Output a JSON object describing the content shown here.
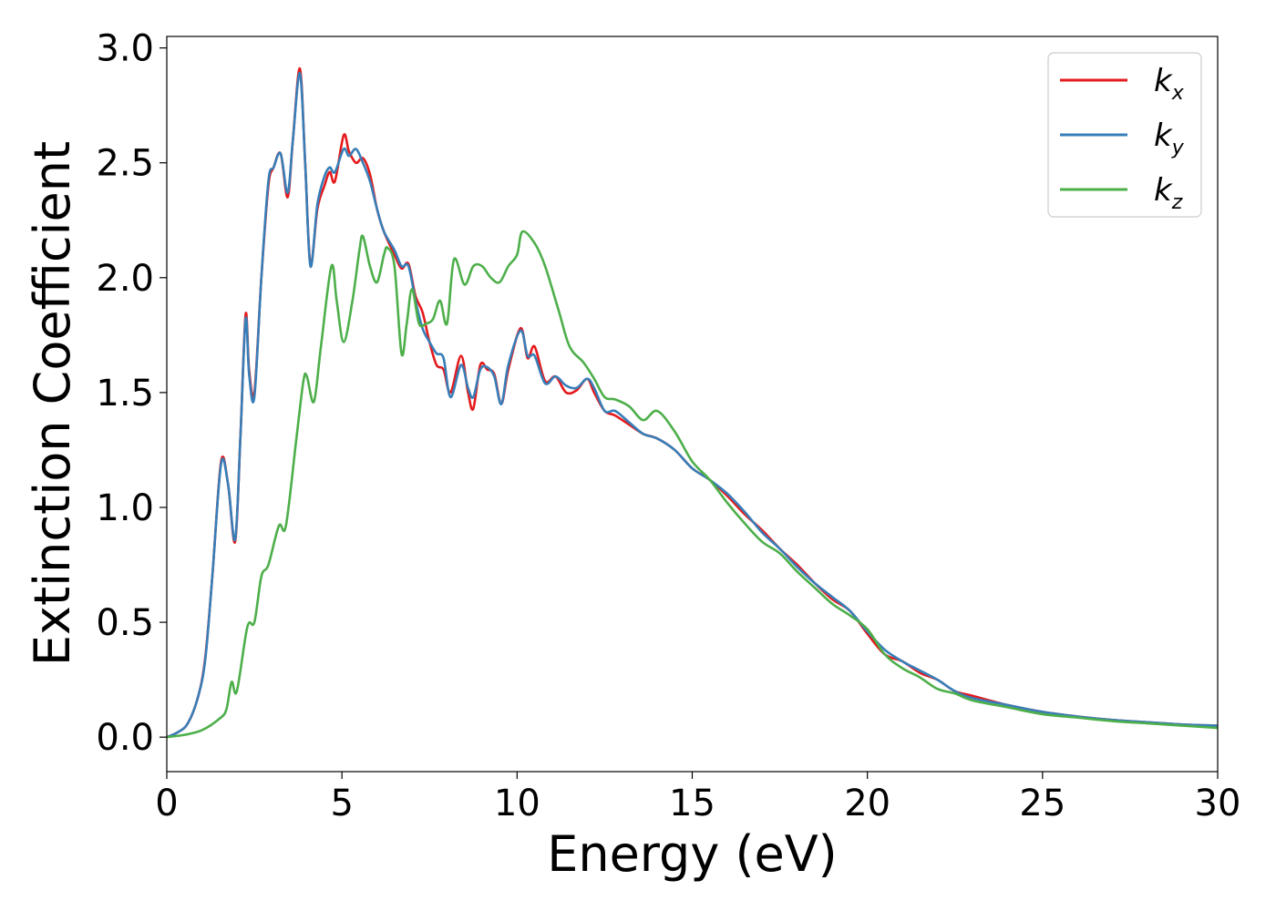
{
  "chart_data": {
    "type": "line",
    "xlabel": "Energy (eV)",
    "ylabel": "Extinction Coefficient",
    "xlim": [
      0,
      30
    ],
    "ylim": [
      -0.15,
      3.05
    ],
    "x_ticks": [
      "0",
      "5",
      "10",
      "15",
      "20",
      "25",
      "30"
    ],
    "y_ticks": [
      "0.0",
      "0.5",
      "1.0",
      "1.5",
      "2.0",
      "2.5",
      "3.0"
    ],
    "grid": false,
    "legend_position": "top-right",
    "series": [
      {
        "name": "k",
        "subscript": "x",
        "color": "#e41a1c",
        "points": [
          [
            0,
            0
          ],
          [
            0.3,
            0.02
          ],
          [
            0.6,
            0.06
          ],
          [
            0.9,
            0.18
          ],
          [
            1.1,
            0.35
          ],
          [
            1.3,
            0.7
          ],
          [
            1.55,
            1.2
          ],
          [
            1.75,
            1.1
          ],
          [
            1.95,
            0.85
          ],
          [
            2.1,
            1.3
          ],
          [
            2.25,
            1.84
          ],
          [
            2.35,
            1.6
          ],
          [
            2.5,
            1.5
          ],
          [
            2.7,
            2.0
          ],
          [
            2.9,
            2.4
          ],
          [
            3.05,
            2.48
          ],
          [
            3.25,
            2.54
          ],
          [
            3.45,
            2.35
          ],
          [
            3.6,
            2.6
          ],
          [
            3.8,
            2.91
          ],
          [
            3.95,
            2.5
          ],
          [
            4.1,
            2.06
          ],
          [
            4.3,
            2.3
          ],
          [
            4.5,
            2.4
          ],
          [
            4.65,
            2.46
          ],
          [
            4.8,
            2.42
          ],
          [
            5.05,
            2.62
          ],
          [
            5.2,
            2.55
          ],
          [
            5.4,
            2.5
          ],
          [
            5.6,
            2.52
          ],
          [
            5.8,
            2.45
          ],
          [
            6.0,
            2.3
          ],
          [
            6.2,
            2.2
          ],
          [
            6.5,
            2.1
          ],
          [
            6.7,
            2.04
          ],
          [
            6.9,
            2.06
          ],
          [
            7.1,
            1.92
          ],
          [
            7.3,
            1.85
          ],
          [
            7.5,
            1.72
          ],
          [
            7.7,
            1.62
          ],
          [
            7.9,
            1.6
          ],
          [
            8.1,
            1.5
          ],
          [
            8.4,
            1.66
          ],
          [
            8.6,
            1.5
          ],
          [
            8.75,
            1.43
          ],
          [
            8.95,
            1.62
          ],
          [
            9.15,
            1.6
          ],
          [
            9.35,
            1.58
          ],
          [
            9.55,
            1.45
          ],
          [
            9.75,
            1.6
          ],
          [
            10.1,
            1.78
          ],
          [
            10.3,
            1.65
          ],
          [
            10.5,
            1.7
          ],
          [
            10.8,
            1.55
          ],
          [
            11.1,
            1.57
          ],
          [
            11.4,
            1.5
          ],
          [
            11.7,
            1.51
          ],
          [
            12.0,
            1.56
          ],
          [
            12.2,
            1.5
          ],
          [
            12.5,
            1.42
          ],
          [
            12.8,
            1.4
          ],
          [
            13.2,
            1.36
          ],
          [
            13.6,
            1.32
          ],
          [
            14.0,
            1.3
          ],
          [
            14.5,
            1.25
          ],
          [
            15.0,
            1.17
          ],
          [
            15.5,
            1.12
          ],
          [
            16.0,
            1.05
          ],
          [
            16.5,
            0.97
          ],
          [
            17.0,
            0.9
          ],
          [
            17.5,
            0.82
          ],
          [
            18.0,
            0.75
          ],
          [
            18.5,
            0.67
          ],
          [
            19.0,
            0.6
          ],
          [
            19.5,
            0.55
          ],
          [
            20.0,
            0.45
          ],
          [
            20.5,
            0.36
          ],
          [
            21.0,
            0.33
          ],
          [
            21.5,
            0.28
          ],
          [
            22.0,
            0.25
          ],
          [
            22.5,
            0.2
          ],
          [
            23.0,
            0.18
          ],
          [
            24.0,
            0.14
          ],
          [
            25.0,
            0.11
          ],
          [
            26.0,
            0.09
          ],
          [
            27.0,
            0.075
          ],
          [
            28.0,
            0.065
          ],
          [
            29.0,
            0.055
          ],
          [
            30.0,
            0.05
          ]
        ]
      },
      {
        "name": "k",
        "subscript": "y",
        "color": "#377eb8",
        "points": [
          [
            0,
            0
          ],
          [
            0.3,
            0.02
          ],
          [
            0.6,
            0.06
          ],
          [
            0.9,
            0.18
          ],
          [
            1.1,
            0.34
          ],
          [
            1.3,
            0.7
          ],
          [
            1.55,
            1.19
          ],
          [
            1.75,
            1.1
          ],
          [
            1.95,
            0.86
          ],
          [
            2.1,
            1.3
          ],
          [
            2.25,
            1.82
          ],
          [
            2.35,
            1.58
          ],
          [
            2.5,
            1.48
          ],
          [
            2.7,
            2.0
          ],
          [
            2.9,
            2.42
          ],
          [
            3.05,
            2.48
          ],
          [
            3.25,
            2.54
          ],
          [
            3.45,
            2.37
          ],
          [
            3.6,
            2.6
          ],
          [
            3.8,
            2.89
          ],
          [
            3.95,
            2.5
          ],
          [
            4.1,
            2.05
          ],
          [
            4.3,
            2.32
          ],
          [
            4.5,
            2.44
          ],
          [
            4.65,
            2.48
          ],
          [
            4.8,
            2.46
          ],
          [
            5.05,
            2.56
          ],
          [
            5.2,
            2.53
          ],
          [
            5.4,
            2.56
          ],
          [
            5.6,
            2.5
          ],
          [
            5.8,
            2.42
          ],
          [
            6.0,
            2.3
          ],
          [
            6.2,
            2.2
          ],
          [
            6.5,
            2.12
          ],
          [
            6.7,
            2.05
          ],
          [
            6.9,
            2.05
          ],
          [
            7.1,
            1.9
          ],
          [
            7.3,
            1.78
          ],
          [
            7.5,
            1.72
          ],
          [
            7.7,
            1.67
          ],
          [
            7.9,
            1.65
          ],
          [
            8.1,
            1.48
          ],
          [
            8.4,
            1.62
          ],
          [
            8.6,
            1.52
          ],
          [
            8.75,
            1.48
          ],
          [
            8.95,
            1.6
          ],
          [
            9.15,
            1.61
          ],
          [
            9.35,
            1.57
          ],
          [
            9.55,
            1.45
          ],
          [
            9.75,
            1.62
          ],
          [
            10.1,
            1.77
          ],
          [
            10.3,
            1.66
          ],
          [
            10.5,
            1.66
          ],
          [
            10.8,
            1.54
          ],
          [
            11.1,
            1.57
          ],
          [
            11.4,
            1.53
          ],
          [
            11.7,
            1.52
          ],
          [
            12.0,
            1.56
          ],
          [
            12.2,
            1.52
          ],
          [
            12.5,
            1.42
          ],
          [
            12.8,
            1.42
          ],
          [
            13.2,
            1.37
          ],
          [
            13.6,
            1.32
          ],
          [
            14.0,
            1.3
          ],
          [
            14.5,
            1.25
          ],
          [
            15.0,
            1.17
          ],
          [
            15.5,
            1.12
          ],
          [
            16.0,
            1.06
          ],
          [
            16.5,
            0.98
          ],
          [
            17.0,
            0.89
          ],
          [
            17.5,
            0.82
          ],
          [
            18.0,
            0.74
          ],
          [
            18.5,
            0.67
          ],
          [
            19.0,
            0.61
          ],
          [
            19.5,
            0.55
          ],
          [
            20.0,
            0.46
          ],
          [
            20.5,
            0.38
          ],
          [
            21.0,
            0.33
          ],
          [
            21.5,
            0.29
          ],
          [
            22.0,
            0.25
          ],
          [
            22.5,
            0.2
          ],
          [
            23.0,
            0.17
          ],
          [
            24.0,
            0.14
          ],
          [
            25.0,
            0.11
          ],
          [
            26.0,
            0.09
          ],
          [
            27.0,
            0.075
          ],
          [
            28.0,
            0.065
          ],
          [
            29.0,
            0.055
          ],
          [
            30.0,
            0.05
          ]
        ]
      },
      {
        "name": "k",
        "subscript": "z",
        "color": "#4daf4a",
        "points": [
          [
            0,
            0
          ],
          [
            0.5,
            0.01
          ],
          [
            1.0,
            0.03
          ],
          [
            1.5,
            0.08
          ],
          [
            1.7,
            0.12
          ],
          [
            1.85,
            0.24
          ],
          [
            2.0,
            0.2
          ],
          [
            2.3,
            0.48
          ],
          [
            2.5,
            0.5
          ],
          [
            2.7,
            0.7
          ],
          [
            2.9,
            0.75
          ],
          [
            3.2,
            0.92
          ],
          [
            3.4,
            0.92
          ],
          [
            3.7,
            1.3
          ],
          [
            3.9,
            1.55
          ],
          [
            4.0,
            1.57
          ],
          [
            4.2,
            1.46
          ],
          [
            4.4,
            1.7
          ],
          [
            4.7,
            2.05
          ],
          [
            4.85,
            1.9
          ],
          [
            5.05,
            1.72
          ],
          [
            5.3,
            1.9
          ],
          [
            5.5,
            2.12
          ],
          [
            5.6,
            2.18
          ],
          [
            5.8,
            2.05
          ],
          [
            6.0,
            1.98
          ],
          [
            6.2,
            2.1
          ],
          [
            6.3,
            2.13
          ],
          [
            6.5,
            2.05
          ],
          [
            6.7,
            1.67
          ],
          [
            6.85,
            1.8
          ],
          [
            7.0,
            1.95
          ],
          [
            7.2,
            1.8
          ],
          [
            7.4,
            1.8
          ],
          [
            7.6,
            1.82
          ],
          [
            7.8,
            1.9
          ],
          [
            8.0,
            1.8
          ],
          [
            8.2,
            2.08
          ],
          [
            8.5,
            1.97
          ],
          [
            8.75,
            2.05
          ],
          [
            9.0,
            2.05
          ],
          [
            9.25,
            2.0
          ],
          [
            9.5,
            1.98
          ],
          [
            9.75,
            2.05
          ],
          [
            10.0,
            2.1
          ],
          [
            10.15,
            2.2
          ],
          [
            10.5,
            2.15
          ],
          [
            10.8,
            2.05
          ],
          [
            11.2,
            1.85
          ],
          [
            11.5,
            1.7
          ],
          [
            11.9,
            1.63
          ],
          [
            12.2,
            1.56
          ],
          [
            12.5,
            1.48
          ],
          [
            12.8,
            1.47
          ],
          [
            13.2,
            1.44
          ],
          [
            13.6,
            1.38
          ],
          [
            14.0,
            1.42
          ],
          [
            14.5,
            1.33
          ],
          [
            15.0,
            1.2
          ],
          [
            15.5,
            1.12
          ],
          [
            16.0,
            1.02
          ],
          [
            16.5,
            0.93
          ],
          [
            17.0,
            0.85
          ],
          [
            17.5,
            0.8
          ],
          [
            18.0,
            0.72
          ],
          [
            18.5,
            0.65
          ],
          [
            19.0,
            0.58
          ],
          [
            19.5,
            0.53
          ],
          [
            20.0,
            0.47
          ],
          [
            20.5,
            0.36
          ],
          [
            21.0,
            0.3
          ],
          [
            21.5,
            0.26
          ],
          [
            22.0,
            0.21
          ],
          [
            22.5,
            0.19
          ],
          [
            23.0,
            0.16
          ],
          [
            24.0,
            0.13
          ],
          [
            25.0,
            0.1
          ],
          [
            26.0,
            0.085
          ],
          [
            27.0,
            0.07
          ],
          [
            28.0,
            0.06
          ],
          [
            29.0,
            0.05
          ],
          [
            30.0,
            0.04
          ]
        ]
      }
    ]
  }
}
